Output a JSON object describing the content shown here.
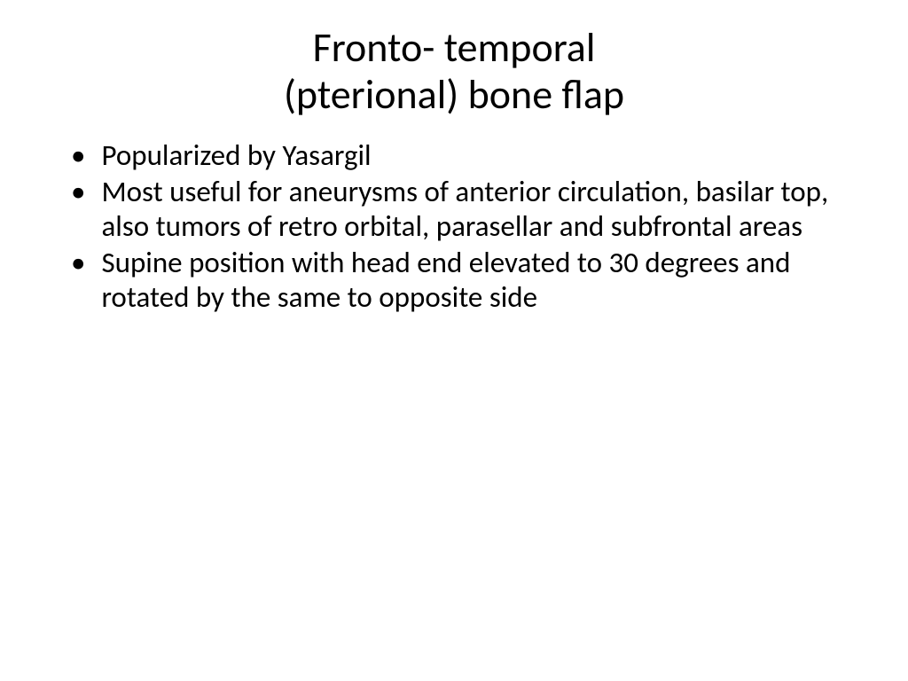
{
  "slide": {
    "title_line1": "Fronto- temporal",
    "title_line2": "(pterional) bone flap",
    "bullets": [
      "Popularized by Yasargil",
      "Most useful for aneurysms of anterior circulation, basilar top, also tumors of retro orbital, parasellar and subfrontal areas",
      "Supine position with head end elevated to 30 degrees and rotated by the same to opposite side"
    ],
    "bullet_marker": "•"
  },
  "styling": {
    "background_color": "#ffffff",
    "text_color": "#000000",
    "title_fontsize": 46,
    "body_fontsize": 33,
    "font_family": "Calibri",
    "title_weight": 400,
    "body_weight": 400
  }
}
